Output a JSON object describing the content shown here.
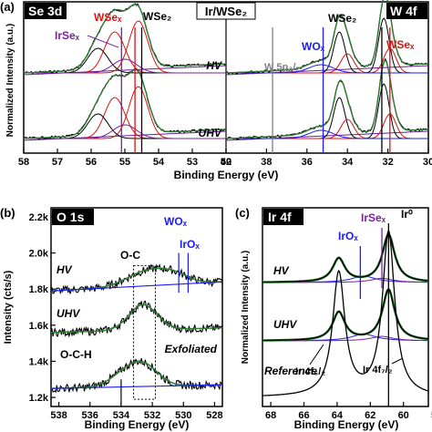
{
  "chart_data": [
    {
      "panel_label": "(a)",
      "type": "line",
      "center_title": "Ir/WSe₂",
      "ylabel": "Normalized Intensity (a.u.)",
      "xlabel": "Binding Energy (eV)",
      "x_reversed": true,
      "x_broken": true,
      "left": {
        "title": "Se 3d",
        "xlim": [
          58,
          52
        ],
        "xticks": [
          "58",
          "57",
          "56",
          "55",
          "54",
          "53",
          "52"
        ],
        "annotations": [
          "WSeₓ",
          "IrSeₓ",
          "WSe₂"
        ],
        "marker_lines": [
          {
            "name": "IrSeₓ",
            "x": 55.1,
            "color": "#7a1f9e"
          },
          {
            "name": "WSeₓ",
            "x": 54.7,
            "color": "#e01010"
          },
          {
            "name": "WSe₂",
            "x": 54.5,
            "color": "#000000"
          }
        ]
      },
      "right": {
        "title": "W 4f",
        "xlim": [
          40,
          30
        ],
        "xticks": [
          "40",
          "38",
          "36",
          "34",
          "32",
          "30"
        ],
        "annotations": [
          "WSe₂",
          "WOₓ",
          "WSeₓ",
          "W 5p₃/₂"
        ],
        "marker_lines": [
          {
            "name": "W 5p₃/₂",
            "x": 37.7,
            "color": "#808080"
          },
          {
            "name": "WOₓ",
            "x": 35.2,
            "color": "#1a1aff"
          },
          {
            "name": "WSeₓ",
            "x": 31.9,
            "color": "#e01010"
          },
          {
            "name": "WSe₂",
            "x": 32.3,
            "color": "#000000"
          }
        ]
      },
      "series_labels": [
        "HV",
        "UHV"
      ],
      "colors": {
        "data": "#000000",
        "fit": "#2e7d32",
        "component_red": "#e01010",
        "component_purple": "#7a1f9e",
        "component_blue": "#1a1aff",
        "background": "#6a1b9a"
      }
    },
    {
      "panel_label": "(b)",
      "type": "line",
      "title": "O 1s",
      "xlabel": "Binding Energy (eV)",
      "ylabel": "Intensity (cts/s)",
      "xlim": [
        538.5,
        527.5
      ],
      "ylim": [
        1150,
        2250
      ],
      "x_reversed": true,
      "xticks": [
        "538",
        "536",
        "534",
        "532",
        "530",
        "528"
      ],
      "yticks": [
        "1.2k",
        "1.4k",
        "1.6k",
        "1.8k",
        "2.0k",
        "2.2k"
      ],
      "ytick_values": [
        1200,
        1400,
        1600,
        1800,
        2000,
        2200
      ],
      "annotations": [
        "O-C",
        "WOₓ",
        "IrOₓ",
        "O-C-H"
      ],
      "series": [
        {
          "name": "HV",
          "peaks": [
            {
              "x": 532.5,
              "height": 75,
              "width": 1.2
            },
            {
              "x": 530.7,
              "height": 55,
              "width": 1.0
            }
          ],
          "baseline": [
            1790,
            1840
          ]
        },
        {
          "name": "UHV",
          "peaks": [
            {
              "x": 532.6,
              "height": 140,
              "width": 0.9
            }
          ],
          "baseline": [
            1560,
            1585
          ]
        },
        {
          "name": "Exfoliated",
          "peaks": [
            {
              "x": 533.6,
              "height": 80,
              "width": 1.0
            },
            {
              "x": 532.4,
              "height": 90,
              "width": 0.9
            }
          ],
          "baseline": [
            1250,
            1270
          ]
        }
      ],
      "marker_lines": [
        {
          "name": "WOₓ",
          "x": 530.3,
          "color": "#1a1aff"
        },
        {
          "name": "IrOₓ",
          "x": 529.7,
          "color": "#1a1aff"
        },
        {
          "name": "O-C-H",
          "x": 534.0,
          "color": "#000000"
        }
      ],
      "dotted_boxes": [
        [
          533.2,
          531.8
        ]
      ]
    },
    {
      "panel_label": "(c)",
      "type": "line",
      "title": "Ir 4f",
      "xlabel": "Binding Energy (eV)",
      "ylabel": "Normalized Intensity (a.u.)",
      "xlim": [
        68.5,
        58.5
      ],
      "x_reversed": true,
      "xticks": [
        "68",
        "66",
        "64",
        "62",
        "60",
        "58"
      ],
      "annotations": [
        "IrSeₓ",
        "IrOₓ",
        "Ir⁰",
        "Ir 4f₅/₂",
        "Ir 4f₇/₂"
      ],
      "series": [
        {
          "name": "HV",
          "peaks": [
            {
              "x": 63.9,
              "height": 0.45
            },
            {
              "x": 60.9,
              "height": 0.9
            }
          ]
        },
        {
          "name": "UHV",
          "peaks": [
            {
              "x": 63.9,
              "height": 0.5
            },
            {
              "x": 60.9,
              "height": 0.9
            }
          ]
        },
        {
          "name": "Reference",
          "peaks": [
            {
              "x": 63.9,
              "height": 0.75
            },
            {
              "x": 60.9,
              "height": 1.0
            }
          ]
        }
      ],
      "marker_lines": [
        {
          "name": "IrSeₓ",
          "x": 61.3,
          "color": "#7a1f9e"
        },
        {
          "name": "IrOₓ",
          "x": 62.6,
          "color": "#1a1aff"
        },
        {
          "name": "Ir⁰",
          "x": 60.9,
          "color": "#000000"
        }
      ]
    }
  ]
}
